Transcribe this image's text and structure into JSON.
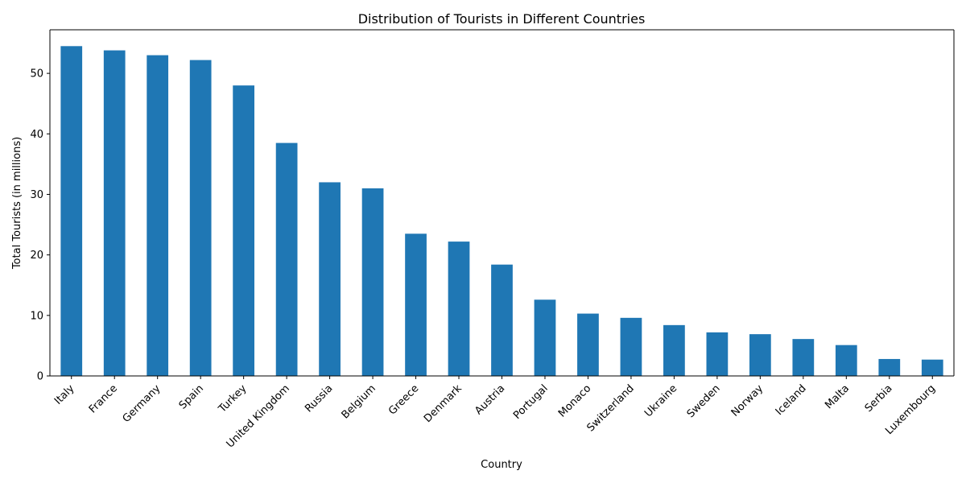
{
  "chart_data": {
    "type": "bar",
    "title": "Distribution of Tourists in Different Countries",
    "xlabel": "Country",
    "ylabel": "Total Tourists (in millions)",
    "categories": [
      "Italy",
      "France",
      "Germany",
      "Spain",
      "Turkey",
      "United Kingdom",
      "Russia",
      "Belgium",
      "Greece",
      "Denmark",
      "Austria",
      "Portugal",
      "Monaco",
      "Switzerland",
      "Ukraine",
      "Sweden",
      "Norway",
      "Iceland",
      "Malta",
      "Serbia",
      "Luxembourg"
    ],
    "values": [
      54.5,
      53.8,
      53.0,
      52.2,
      48.0,
      38.5,
      32.0,
      31.0,
      23.5,
      22.2,
      18.4,
      12.6,
      10.3,
      9.6,
      8.4,
      7.2,
      6.9,
      6.1,
      5.1,
      2.8,
      2.7
    ],
    "ylim": [
      0,
      57.2
    ],
    "yticks": [
      0,
      10,
      20,
      30,
      40,
      50
    ],
    "bar_color": "#1f77b4",
    "grid": false,
    "legend": false
  }
}
